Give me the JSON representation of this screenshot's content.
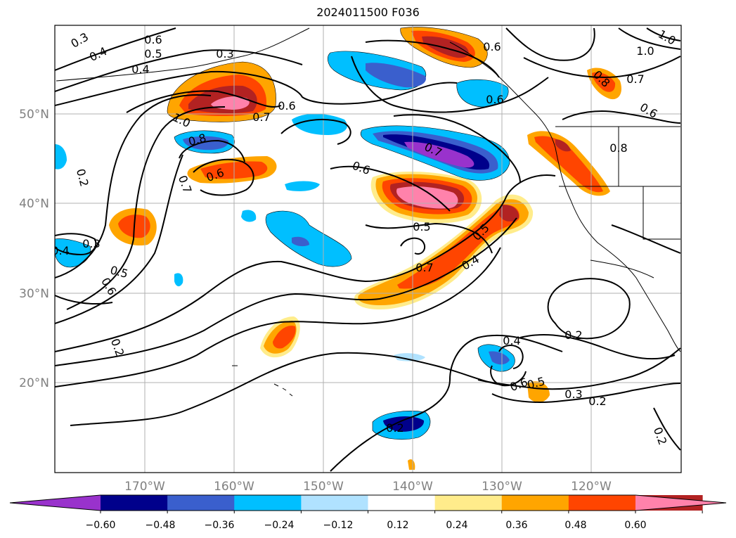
{
  "title": "2024011500 F036",
  "axes": {
    "lon_labels": [
      "170°W",
      "160°W",
      "150°W",
      "140°W",
      "130°W",
      "120°W"
    ],
    "lat_labels": [
      "50°N",
      "40°N",
      "30°N",
      "20°N"
    ]
  },
  "colorbar": {
    "ticks": [
      "−0.60",
      "−0.48",
      "−0.36",
      "−0.24",
      "−0.12",
      "0.12",
      "0.24",
      "0.36",
      "0.48",
      "0.60"
    ],
    "colors": [
      "#9932cc",
      "#00008b",
      "#3a5fcd",
      "#00bfff",
      "#b0e2ff",
      "#ffffff",
      "#ffec8b",
      "#ffa500",
      "#ff4500",
      "#b22222",
      "#ff82ab"
    ]
  },
  "contour_labels": [
    "0.3",
    "0.6",
    "0.4",
    "0.5",
    "0.3",
    "0.4",
    "0.6",
    "0.7",
    "1.0",
    "0.8",
    "0.6",
    "0.7",
    "0.2",
    "0.3",
    "0.4",
    "0.5",
    "0.6",
    "0.2",
    "0.6",
    "0.7",
    "0.6",
    "0.5",
    "0.7",
    "0.4",
    "0.5",
    "0.6",
    "0.7",
    "0.8",
    "0.6",
    "0.8",
    "1.0",
    "1.0",
    "0.2",
    "0.4",
    "0.6",
    "0.5",
    "0.3",
    "0.2",
    "0.2",
    "0.2"
  ]
}
